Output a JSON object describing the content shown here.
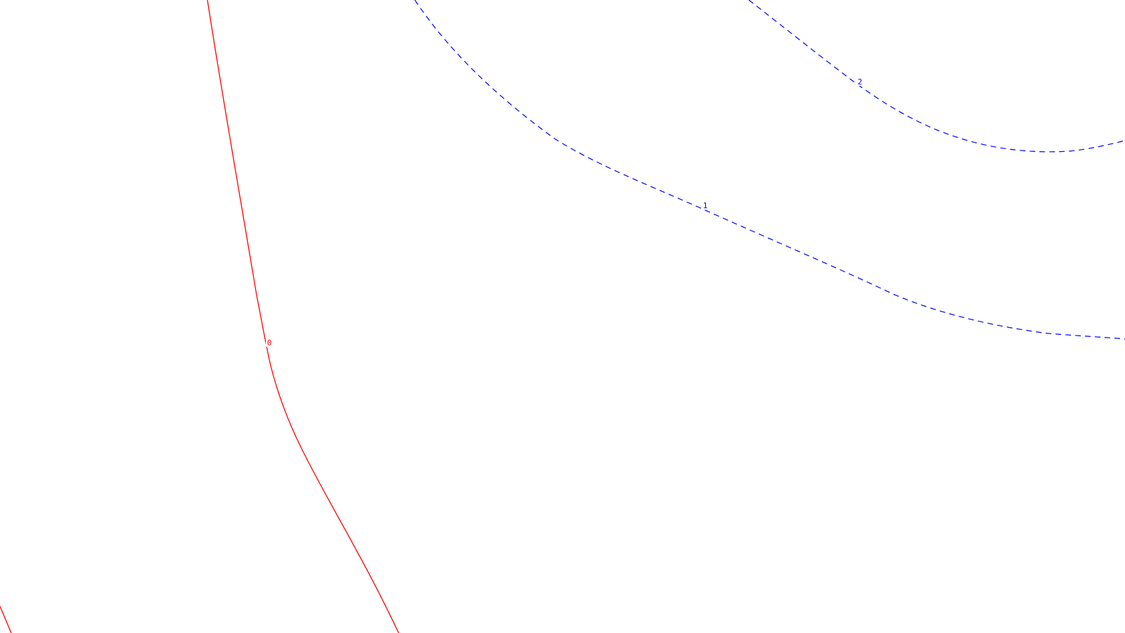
{
  "colors": {
    "background": "#ffffff",
    "zero_contour": "#ff0000",
    "positive_contour": "#0000ff"
  },
  "contours": [
    {
      "level": "0",
      "style": "solid",
      "color": "#ff0000"
    },
    {
      "level": "0",
      "style": "solid",
      "color": "#ff0000"
    },
    {
      "level": "1",
      "style": "dashed",
      "color": "#0000ff"
    },
    {
      "level": "2",
      "style": "dashed",
      "color": "#0000ff"
    }
  ]
}
